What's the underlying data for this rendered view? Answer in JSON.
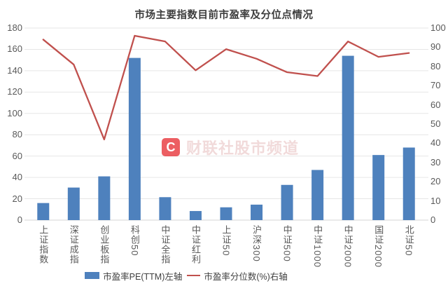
{
  "title": "市场主要指数目前市盈率及分位点情况",
  "watermark": {
    "logo_letter": "C",
    "text": "财联社股市频道"
  },
  "colors": {
    "bar": "#4E81BD",
    "line": "#C0504D",
    "grid": "#E6E6E6",
    "baseline": "#D4D4D4",
    "axis_text": "#595959",
    "title_text": "#3D3D3D",
    "watermark_red": "#E6282D"
  },
  "chart_data": {
    "type": "bar",
    "subtype": "combo-bar-line-dual-axis",
    "title": "市场主要指数目前市盈率及分位点情况",
    "categories": [
      "上证指数",
      "深证成指",
      "创业板指",
      "科创50",
      "中证全指",
      "中证红利",
      "上证50",
      "沪深300",
      "中证500",
      "中证1000",
      "中证2000",
      "国证2000",
      "北证50"
    ],
    "series": [
      {
        "name": "市盈率PE(TTM)左轴",
        "type": "bar",
        "axis": "left",
        "values": [
          16,
          30.5,
          41,
          152,
          21.5,
          8.5,
          12,
          14.5,
          33,
          47,
          154,
          61,
          68
        ]
      },
      {
        "name": "市盈率分位数(%)右轴",
        "type": "line",
        "axis": "right",
        "values": [
          94,
          81,
          42,
          96,
          93,
          78,
          89,
          84,
          77,
          75,
          93,
          85,
          87
        ]
      }
    ],
    "left_axis": {
      "min": 0,
      "max": 180,
      "step": 20
    },
    "right_axis": {
      "min": 0,
      "max": 100,
      "step": 10
    },
    "grid": true,
    "legend_position": "bottom"
  }
}
